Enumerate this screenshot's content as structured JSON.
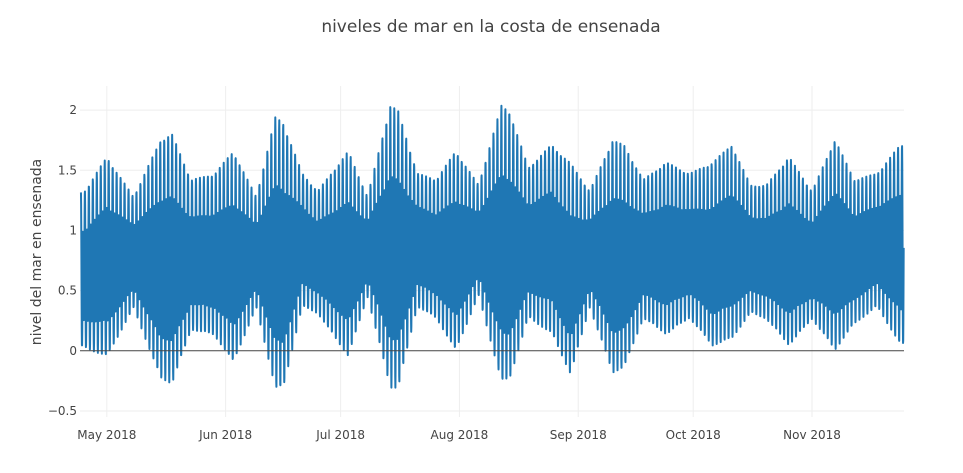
{
  "chart_data": {
    "type": "line",
    "title": "niveles de mar en la costa de ensenada",
    "xlabel": "",
    "ylabel": "nivel del mar en ensenada",
    "x_range": [
      "2018-04-24",
      "2018-11-25"
    ],
    "ylim": [
      -0.55,
      2.2
    ],
    "y_ticks": [
      {
        "value": -0.5,
        "label": "−0.5"
      },
      {
        "value": 0,
        "label": "0"
      },
      {
        "value": 0.5,
        "label": "0.5"
      },
      {
        "value": 1,
        "label": "1"
      },
      {
        "value": 1.5,
        "label": "1.5"
      },
      {
        "value": 2,
        "label": "2"
      }
    ],
    "x_ticks": [
      {
        "date": "2018-05-01",
        "label": "May 2018"
      },
      {
        "date": "2018-06-01",
        "label": "Jun 2018"
      },
      {
        "date": "2018-07-01",
        "label": "Jul 2018"
      },
      {
        "date": "2018-08-01",
        "label": "Aug 2018"
      },
      {
        "date": "2018-09-01",
        "label": "Sep 2018"
      },
      {
        "date": "2018-10-01",
        "label": "Oct 2018"
      },
      {
        "date": "2018-11-01",
        "label": "Nov 2018"
      }
    ],
    "grid": true,
    "series": [
      {
        "color": "#1f77b4",
        "sampling": "hourly",
        "daily_envelope": [
          {
            "date": "2018-04-25",
            "high": 1.35,
            "low": -0.05
          },
          {
            "date": "2018-05-01",
            "high": 1.65,
            "low": -0.15
          },
          {
            "date": "2018-05-08",
            "high": 1.3,
            "low": 0.3
          },
          {
            "date": "2018-05-15",
            "high": 1.8,
            "low": -0.35
          },
          {
            "date": "2018-05-18",
            "high": 1.85,
            "low": -0.4
          },
          {
            "date": "2018-05-23",
            "high": 1.45,
            "low": 0.1
          },
          {
            "date": "2018-05-29",
            "high": 1.5,
            "low": 0.05
          },
          {
            "date": "2018-06-03",
            "high": 1.7,
            "low": -0.2
          },
          {
            "date": "2018-06-09",
            "high": 1.3,
            "low": 0.3
          },
          {
            "date": "2018-06-14",
            "high": 2.0,
            "low": -0.45
          },
          {
            "date": "2018-06-16",
            "high": 1.95,
            "low": -0.45
          },
          {
            "date": "2018-06-21",
            "high": 1.5,
            "low": 0.3
          },
          {
            "date": "2018-06-25",
            "high": 1.35,
            "low": 0.25
          },
          {
            "date": "2018-07-03",
            "high": 1.7,
            "low": -0.15
          },
          {
            "date": "2018-07-08",
            "high": 1.3,
            "low": 0.4
          },
          {
            "date": "2018-07-14",
            "high": 2.1,
            "low": -0.45
          },
          {
            "date": "2018-07-16",
            "high": 2.05,
            "low": -0.45
          },
          {
            "date": "2018-07-21",
            "high": 1.5,
            "low": 0.3
          },
          {
            "date": "2018-07-26",
            "high": 1.45,
            "low": 0.2
          },
          {
            "date": "2018-07-31",
            "high": 1.7,
            "low": -0.1
          },
          {
            "date": "2018-08-06",
            "high": 1.4,
            "low": 0.4
          },
          {
            "date": "2018-08-12",
            "high": 2.1,
            "low": -0.4
          },
          {
            "date": "2018-08-14",
            "high": 2.05,
            "low": -0.38
          },
          {
            "date": "2018-08-19",
            "high": 1.55,
            "low": 0.2
          },
          {
            "date": "2018-08-25",
            "high": 1.75,
            "low": 0.05
          },
          {
            "date": "2018-08-30",
            "high": 1.6,
            "low": -0.3
          },
          {
            "date": "2018-09-04",
            "high": 1.35,
            "low": 0.3
          },
          {
            "date": "2018-09-10",
            "high": 1.8,
            "low": -0.3
          },
          {
            "date": "2018-09-13",
            "high": 1.75,
            "low": -0.25
          },
          {
            "date": "2018-09-18",
            "high": 1.45,
            "low": 0.2
          },
          {
            "date": "2018-09-24",
            "high": 1.6,
            "low": 0.05
          },
          {
            "date": "2018-09-30",
            "high": 1.5,
            "low": 0.2
          },
          {
            "date": "2018-10-06",
            "high": 1.6,
            "low": -0.05
          },
          {
            "date": "2018-10-11",
            "high": 1.75,
            "low": 0.0
          },
          {
            "date": "2018-10-16",
            "high": 1.4,
            "low": 0.25
          },
          {
            "date": "2018-10-20",
            "high": 1.4,
            "low": 0.2
          },
          {
            "date": "2018-10-26",
            "high": 1.65,
            "low": -0.05
          },
          {
            "date": "2018-11-01",
            "high": 1.35,
            "low": 0.2
          },
          {
            "date": "2018-11-07",
            "high": 1.8,
            "low": -0.1
          },
          {
            "date": "2018-11-12",
            "high": 1.45,
            "low": 0.15
          },
          {
            "date": "2018-11-18",
            "high": 1.5,
            "low": 0.3
          },
          {
            "date": "2018-11-24",
            "high": 1.75,
            "low": -0.05
          }
        ]
      }
    ]
  }
}
